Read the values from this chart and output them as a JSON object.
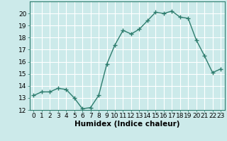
{
  "x": [
    0,
    1,
    2,
    3,
    4,
    5,
    6,
    7,
    8,
    9,
    10,
    11,
    12,
    13,
    14,
    15,
    16,
    17,
    18,
    19,
    20,
    21,
    22,
    23
  ],
  "y": [
    13.2,
    13.5,
    13.5,
    13.8,
    13.7,
    13.0,
    12.1,
    12.2,
    13.2,
    15.8,
    17.4,
    18.6,
    18.3,
    18.7,
    19.4,
    20.1,
    20.0,
    20.2,
    19.7,
    19.6,
    17.8,
    16.5,
    15.1,
    15.4
  ],
  "line_color": "#2e7d6e",
  "marker": "+",
  "marker_size": 4,
  "bg_color": "#cceaea",
  "grid_color": "#ffffff",
  "xlabel": "Humidex (Indice chaleur)",
  "ylabel": "",
  "ylim": [
    12,
    21
  ],
  "xlim": [
    -0.5,
    23.5
  ],
  "yticks": [
    12,
    13,
    14,
    15,
    16,
    17,
    18,
    19,
    20
  ],
  "xticks": [
    0,
    1,
    2,
    3,
    4,
    5,
    6,
    7,
    8,
    9,
    10,
    11,
    12,
    13,
    14,
    15,
    16,
    17,
    18,
    19,
    20,
    21,
    22,
    23
  ],
  "tick_label_fontsize": 6.5,
  "xlabel_fontsize": 7.5,
  "line_width": 1.0
}
